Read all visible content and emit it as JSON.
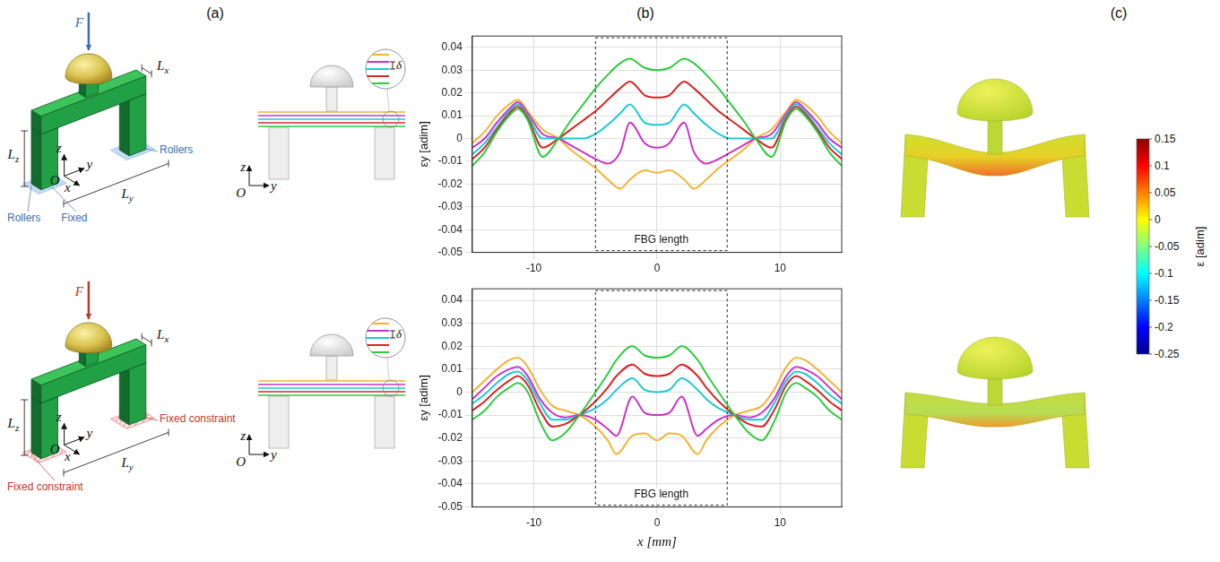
{
  "panel_labels": [
    "(a)",
    "(b)",
    "(c)"
  ],
  "diagram_a": {
    "force": "F",
    "axes": {
      "x": "x",
      "y": "y",
      "z": "z",
      "origin": "O"
    },
    "dims": {
      "x": {
        "base": "L",
        "sub": "x"
      },
      "y": {
        "base": "L",
        "sub": "y"
      },
      "z": {
        "base": "L",
        "sub": "z"
      }
    },
    "top": {
      "support_labels": [
        "Rollers",
        "Rollers",
        "Fixed"
      ]
    },
    "bottom": {
      "support_labels": [
        "Fixed constraint",
        "Fixed constraint"
      ]
    },
    "side_view": {
      "axes": {
        "z": "z",
        "y": "y",
        "origin": "O"
      },
      "spacing": "δ"
    }
  },
  "chart_data": [
    {
      "type": "line",
      "x": [
        -15,
        -14,
        -13,
        -12,
        -11.3,
        -10.5,
        -9.3,
        -8,
        -7,
        -6,
        -5,
        -4,
        -3,
        -2.2,
        -1,
        0,
        1,
        2.2,
        3,
        4,
        5,
        6,
        7,
        8,
        9.3,
        10.5,
        11.3,
        12,
        13,
        14,
        15
      ],
      "series": [
        {
          "color": "#2ecc40",
          "values": [
            -0.012,
            -0.006,
            0.003,
            0.01,
            0.013,
            0.008,
            -0.008,
            0.0,
            0.008,
            0.015,
            0.022,
            0.028,
            0.033,
            0.035,
            0.031,
            0.03,
            0.031,
            0.035,
            0.033,
            0.028,
            0.022,
            0.015,
            0.008,
            0.0,
            -0.008,
            0.008,
            0.013,
            0.01,
            0.003,
            -0.006,
            -0.012
          ]
        },
        {
          "color": "#d62728",
          "values": [
            -0.009,
            -0.004,
            0.004,
            0.011,
            0.014,
            0.009,
            -0.004,
            0.0,
            0.004,
            0.008,
            0.012,
            0.017,
            0.022,
            0.025,
            0.019,
            0.018,
            0.019,
            0.025,
            0.022,
            0.017,
            0.012,
            0.008,
            0.004,
            0.0,
            -0.004,
            0.009,
            0.014,
            0.011,
            0.004,
            -0.004,
            -0.009
          ]
        },
        {
          "color": "#1fc8d8",
          "values": [
            -0.007,
            -0.002,
            0.005,
            0.012,
            0.015,
            0.01,
            0.0,
            0.0,
            0.0,
            0.0,
            0.002,
            0.006,
            0.011,
            0.015,
            0.007,
            0.006,
            0.007,
            0.015,
            0.011,
            0.006,
            0.002,
            0.0,
            0.0,
            0.0,
            0.0,
            0.01,
            0.015,
            0.012,
            0.005,
            -0.002,
            -0.007
          ]
        },
        {
          "color": "#c935c9",
          "values": [
            -0.004,
            0.0,
            0.007,
            0.013,
            0.016,
            0.011,
            0.002,
            0.0,
            -0.003,
            -0.006,
            -0.009,
            -0.011,
            -0.006,
            0.007,
            -0.002,
            -0.004,
            -0.002,
            0.007,
            -0.006,
            -0.011,
            -0.009,
            -0.006,
            -0.003,
            0.0,
            0.002,
            0.011,
            0.016,
            0.013,
            0.007,
            0.0,
            -0.004
          ]
        },
        {
          "color": "#f5b335",
          "values": [
            -0.002,
            0.003,
            0.01,
            0.015,
            0.017,
            0.012,
            0.004,
            0.0,
            -0.005,
            -0.009,
            -0.013,
            -0.018,
            -0.022,
            -0.018,
            -0.014,
            -0.015,
            -0.014,
            -0.018,
            -0.022,
            -0.018,
            -0.013,
            -0.009,
            -0.005,
            0.0,
            0.004,
            0.012,
            0.017,
            0.015,
            0.01,
            0.003,
            -0.002
          ]
        }
      ],
      "xlim": [
        -15,
        15
      ],
      "xticks": [
        -10,
        0,
        10
      ],
      "ylim": [
        -0.05,
        0.045
      ],
      "yticks": [
        -0.05,
        -0.04,
        -0.03,
        -0.02,
        -0.01,
        0,
        0.01,
        0.02,
        0.03,
        0.04
      ],
      "y_label": "εy [adim]",
      "grid": true,
      "annotations": [
        {
          "text": "FBG length",
          "x_range": [
            -5,
            5.7
          ]
        }
      ]
    },
    {
      "type": "line",
      "x": [
        -15,
        -14,
        -13,
        -12,
        -11.3,
        -10.5,
        -9.5,
        -8.5,
        -7.5,
        -6.3,
        -5,
        -4,
        -3.3,
        -2,
        -1,
        0,
        1,
        2,
        3.3,
        4,
        5,
        6.3,
        7.5,
        8.5,
        9.5,
        10.5,
        11.3,
        12,
        13,
        14,
        15
      ],
      "series": [
        {
          "color": "#2ecc40",
          "values": [
            -0.012,
            -0.008,
            -0.002,
            0.002,
            0.004,
            0.0,
            -0.013,
            -0.021,
            -0.018,
            -0.01,
            0.0,
            0.008,
            0.014,
            0.02,
            0.016,
            0.015,
            0.016,
            0.02,
            0.014,
            0.008,
            0.0,
            -0.01,
            -0.018,
            -0.021,
            -0.013,
            0.0,
            0.004,
            0.002,
            -0.002,
            -0.008,
            -0.012
          ]
        },
        {
          "color": "#d62728",
          "values": [
            -0.008,
            -0.004,
            0.001,
            0.005,
            0.007,
            0.003,
            -0.008,
            -0.015,
            -0.014,
            -0.01,
            -0.004,
            0.002,
            0.007,
            0.012,
            0.008,
            0.007,
            0.008,
            0.012,
            0.007,
            0.002,
            -0.004,
            -0.01,
            -0.014,
            -0.015,
            -0.008,
            0.003,
            0.007,
            0.005,
            0.001,
            -0.004,
            -0.008
          ]
        },
        {
          "color": "#1fc8d8",
          "values": [
            -0.005,
            -0.001,
            0.004,
            0.008,
            0.009,
            0.005,
            -0.005,
            -0.012,
            -0.012,
            -0.01,
            -0.007,
            -0.003,
            0.001,
            0.006,
            0.001,
            0.0,
            0.001,
            0.006,
            0.001,
            -0.003,
            -0.007,
            -0.01,
            -0.012,
            -0.012,
            -0.005,
            0.005,
            0.009,
            0.008,
            0.004,
            -0.001,
            -0.005
          ]
        },
        {
          "color": "#c935c9",
          "values": [
            -0.003,
            0.002,
            0.007,
            0.01,
            0.011,
            0.007,
            -0.003,
            -0.009,
            -0.011,
            -0.01,
            -0.012,
            -0.016,
            -0.019,
            -0.002,
            -0.009,
            -0.01,
            -0.009,
            -0.002,
            -0.019,
            -0.016,
            -0.012,
            -0.01,
            -0.011,
            -0.009,
            -0.003,
            0.007,
            0.011,
            0.01,
            0.007,
            0.002,
            -0.003
          ]
        },
        {
          "color": "#f5b335",
          "values": [
            0.0,
            0.005,
            0.01,
            0.014,
            0.015,
            0.011,
            0.001,
            -0.006,
            -0.008,
            -0.01,
            -0.015,
            -0.021,
            -0.027,
            -0.019,
            -0.018,
            -0.021,
            -0.018,
            -0.019,
            -0.027,
            -0.021,
            -0.015,
            -0.01,
            -0.008,
            -0.006,
            0.001,
            0.011,
            0.015,
            0.014,
            0.01,
            0.005,
            0.0
          ]
        }
      ],
      "xlim": [
        -15,
        15
      ],
      "xticks": [
        -10,
        0,
        10
      ],
      "ylim": [
        -0.05,
        0.045
      ],
      "yticks": [
        -0.05,
        -0.04,
        -0.03,
        -0.02,
        -0.01,
        0,
        0.01,
        0.02,
        0.03,
        0.04
      ],
      "x_label": "x [mm]",
      "y_label": "εy [adim]",
      "grid": true,
      "annotations": [
        {
          "text": "FBG length",
          "x_range": [
            -5,
            5.7
          ]
        }
      ]
    }
  ],
  "colorbar": {
    "label": "ε [adim]",
    "range": [
      -0.25,
      0.15
    ],
    "ticks": [
      0.15,
      0.1,
      0.05,
      0,
      -0.05,
      -0.1,
      -0.15,
      -0.2,
      -0.25
    ]
  }
}
